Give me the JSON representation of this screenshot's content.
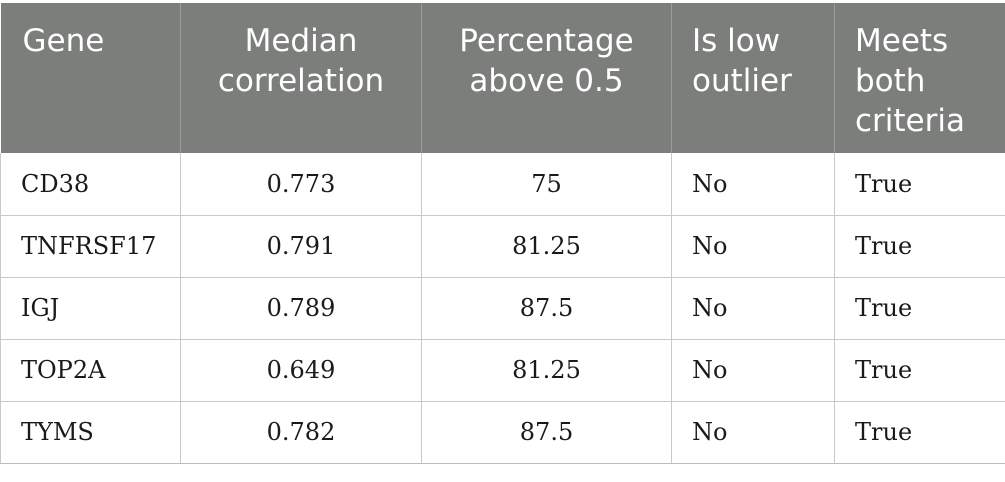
{
  "table": {
    "headers": {
      "gene": "Gene",
      "median_line1": "Median",
      "median_line2": "correlation",
      "pct_line1": "Percentage",
      "pct_line2": "above 0.5",
      "low_line1": "Is low",
      "low_line2": "outlier",
      "both_line1": "Meets",
      "both_line2": "both",
      "both_line3": "criteria"
    },
    "rows": [
      {
        "gene": "CD38",
        "median": "0.773",
        "pct": "75",
        "low": "No",
        "both": "True"
      },
      {
        "gene": "TNFRSF17",
        "median": "0.791",
        "pct": "81.25",
        "low": "No",
        "both": "True"
      },
      {
        "gene": "IGJ",
        "median": "0.789",
        "pct": "87.5",
        "low": "No",
        "both": "True"
      },
      {
        "gene": "TOP2A",
        "median": "0.649",
        "pct": "81.25",
        "low": "No",
        "both": "True"
      },
      {
        "gene": "TYMS",
        "median": "0.782",
        "pct": "87.5",
        "low": "No",
        "both": "True"
      }
    ],
    "header_background": "#7b7e7a",
    "header_text_color": "#ffffff",
    "border_color": "#c9c9c9"
  }
}
